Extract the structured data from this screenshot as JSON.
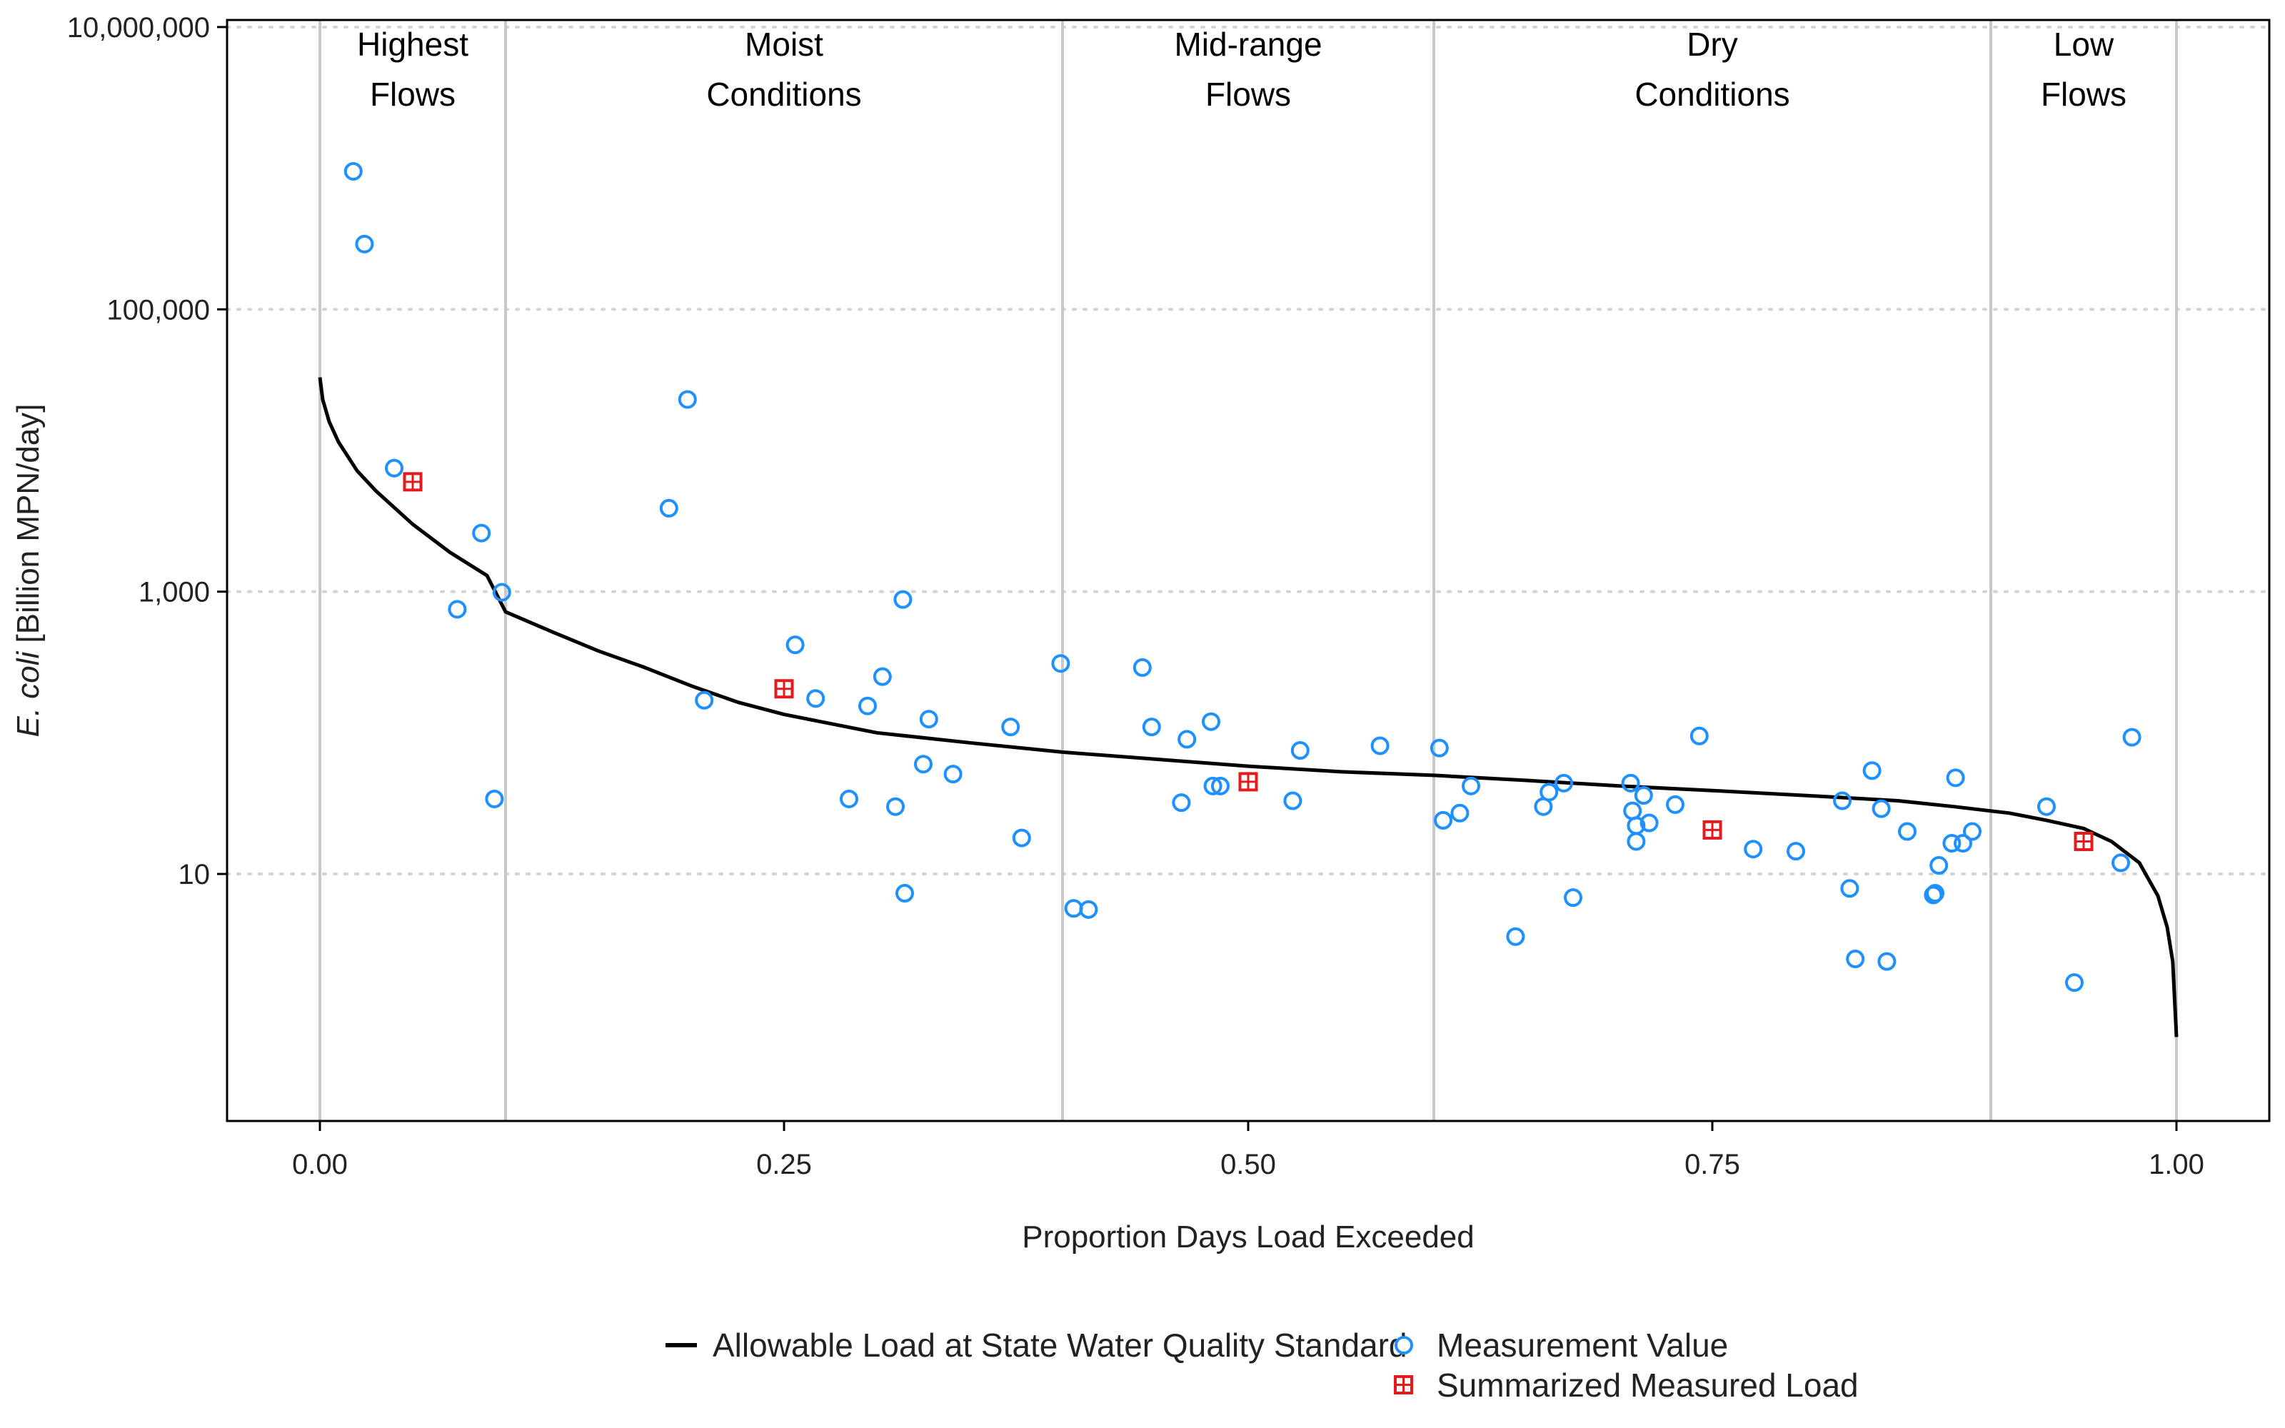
{
  "chart_data": {
    "type": "scatter",
    "xlabel": "Proportion Days Load Exceeded",
    "ylabel_italic": "E. coli",
    "ylabel_rest": " [Billion MPN/day]",
    "xlim": [
      -0.05,
      1.05
    ],
    "ylim_log10": [
      -0.75,
      7.05
    ],
    "y_scale": "log",
    "x_ticks": [
      {
        "value": 0.0,
        "label": "0.00"
      },
      {
        "value": 0.25,
        "label": "0.25"
      },
      {
        "value": 0.5,
        "label": "0.50"
      },
      {
        "value": 0.75,
        "label": "0.75"
      },
      {
        "value": 1.0,
        "label": "1.00"
      }
    ],
    "y_ticks": [
      {
        "value": 10,
        "label": "10"
      },
      {
        "value": 1000,
        "label": "1,000"
      },
      {
        "value": 100000,
        "label": "100,000"
      },
      {
        "value": 10000000,
        "label": "10,000,000"
      }
    ],
    "grid": "dotted horizontal at y ticks",
    "zones": [
      {
        "line1": "Highest",
        "line2": "Flows",
        "center": 0.05
      },
      {
        "line1": "Moist",
        "line2": "Conditions",
        "center": 0.25
      },
      {
        "line1": "Mid-range",
        "line2": "Flows",
        "center": 0.5
      },
      {
        "line1": "Dry",
        "line2": "Conditions",
        "center": 0.75
      },
      {
        "line1": "Low",
        "line2": "Flows",
        "center": 0.95
      }
    ],
    "zone_boundaries": [
      0.0,
      0.1,
      0.4,
      0.6,
      0.9,
      1.0
    ],
    "colors": {
      "curve": "#000000",
      "measurement": "#1E90FF",
      "summary": "#E41A1C",
      "zone_line": "#C8C8C8",
      "grid": "#D3D3D3"
    },
    "series": [
      {
        "name": "Allowable Load at State Water Quality Standard",
        "kind": "line",
        "points": [
          [
            0.0,
            33000
          ],
          [
            0.0015,
            23000
          ],
          [
            0.005,
            16000
          ],
          [
            0.01,
            11500
          ],
          [
            0.02,
            7200
          ],
          [
            0.03,
            5200
          ],
          [
            0.05,
            3000
          ],
          [
            0.07,
            1900
          ],
          [
            0.09,
            1300
          ],
          [
            0.1,
            720
          ],
          [
            0.125,
            520
          ],
          [
            0.15,
            380
          ],
          [
            0.175,
            290
          ],
          [
            0.2,
            215
          ],
          [
            0.225,
            165
          ],
          [
            0.25,
            135
          ],
          [
            0.3,
            100
          ],
          [
            0.35,
            85
          ],
          [
            0.4,
            73
          ],
          [
            0.45,
            65
          ],
          [
            0.5,
            58
          ],
          [
            0.55,
            53
          ],
          [
            0.6,
            50
          ],
          [
            0.65,
            46
          ],
          [
            0.7,
            42
          ],
          [
            0.75,
            39
          ],
          [
            0.8,
            36
          ],
          [
            0.85,
            33
          ],
          [
            0.88,
            30
          ],
          [
            0.91,
            27
          ],
          [
            0.93,
            24
          ],
          [
            0.95,
            21
          ],
          [
            0.965,
            17
          ],
          [
            0.98,
            12
          ],
          [
            0.99,
            7
          ],
          [
            0.995,
            4.2
          ],
          [
            0.998,
            2.4
          ],
          [
            1.0,
            0.7
          ]
        ]
      },
      {
        "name": "Measurement Value",
        "kind": "points",
        "points": [
          [
            0.018,
            950000
          ],
          [
            0.024,
            290000
          ],
          [
            0.04,
            7500
          ],
          [
            0.074,
            750
          ],
          [
            0.087,
            2600
          ],
          [
            0.094,
            34
          ],
          [
            0.098,
            990
          ],
          [
            0.188,
            3900
          ],
          [
            0.198,
            23000
          ],
          [
            0.207,
            170
          ],
          [
            0.256,
            420
          ],
          [
            0.267,
            175
          ],
          [
            0.285,
            34
          ],
          [
            0.295,
            155
          ],
          [
            0.303,
            250
          ],
          [
            0.31,
            30
          ],
          [
            0.314,
            880
          ],
          [
            0.315,
            7.3
          ],
          [
            0.325,
            60
          ],
          [
            0.328,
            125
          ],
          [
            0.341,
            51
          ],
          [
            0.372,
            110
          ],
          [
            0.378,
            18
          ],
          [
            0.399,
            310
          ],
          [
            0.406,
            5.7
          ],
          [
            0.414,
            5.6
          ],
          [
            0.443,
            290
          ],
          [
            0.448,
            110
          ],
          [
            0.464,
            32
          ],
          [
            0.467,
            90
          ],
          [
            0.48,
            120
          ],
          [
            0.481,
            42
          ],
          [
            0.485,
            42
          ],
          [
            0.524,
            33
          ],
          [
            0.528,
            75
          ],
          [
            0.571,
            81
          ],
          [
            0.603,
            78
          ],
          [
            0.605,
            24
          ],
          [
            0.614,
            27
          ],
          [
            0.62,
            42
          ],
          [
            0.644,
            3.6
          ],
          [
            0.659,
            30
          ],
          [
            0.662,
            38
          ],
          [
            0.67,
            44
          ],
          [
            0.675,
            6.8
          ],
          [
            0.706,
            44
          ],
          [
            0.707,
            28
          ],
          [
            0.709,
            22
          ],
          [
            0.709,
            17
          ],
          [
            0.713,
            36
          ],
          [
            0.716,
            23
          ],
          [
            0.73,
            31
          ],
          [
            0.743,
            95
          ],
          [
            0.772,
            15
          ],
          [
            0.795,
            14.5
          ],
          [
            0.82,
            33
          ],
          [
            0.824,
            7.9
          ],
          [
            0.827,
            2.5
          ],
          [
            0.836,
            54
          ],
          [
            0.841,
            29
          ],
          [
            0.844,
            2.4
          ],
          [
            0.855,
            20
          ],
          [
            0.869,
            7.1
          ],
          [
            0.87,
            7.3
          ],
          [
            0.872,
            11.5
          ],
          [
            0.879,
            16.5
          ],
          [
            0.881,
            48
          ],
          [
            0.885,
            16.5
          ],
          [
            0.89,
            20
          ],
          [
            0.93,
            30
          ],
          [
            0.945,
            1.7
          ],
          [
            0.97,
            12
          ],
          [
            0.976,
            93
          ]
        ]
      },
      {
        "name": "Summarized Measured Load",
        "kind": "points",
        "points": [
          [
            0.05,
            6000
          ],
          [
            0.25,
            205
          ],
          [
            0.5,
            45
          ],
          [
            0.75,
            20.5
          ],
          [
            0.95,
            17
          ]
        ]
      }
    ]
  }
}
